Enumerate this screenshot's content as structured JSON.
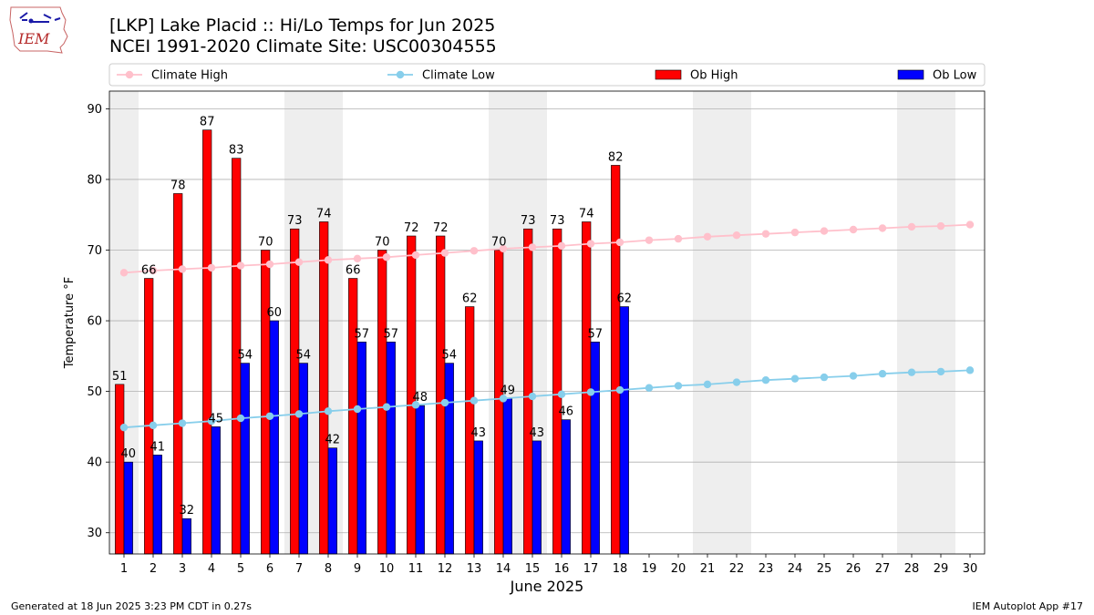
{
  "header": {
    "title_line1": "[LKP] Lake Placid :: Hi/Lo Temps for Jun 2025",
    "title_line2": "NCEI 1991-2020 Climate Site: USC00304555",
    "logo_text": "IEM"
  },
  "footer": {
    "generated": "Generated at 18 Jun 2025 3:23 PM CDT in 0.27s",
    "app": "IEM Autoplot App #17"
  },
  "chart_data": {
    "type": "bar",
    "title": "[LKP] Lake Placid :: Hi/Lo Temps for Jun 2025",
    "subtitle": "NCEI 1991-2020 Climate Site: USC00304555",
    "xlabel": "June 2025",
    "ylabel": "Temperature °F",
    "x_ticks": [
      1,
      2,
      3,
      4,
      5,
      6,
      7,
      8,
      9,
      10,
      11,
      12,
      13,
      14,
      15,
      16,
      17,
      18,
      19,
      20,
      21,
      22,
      23,
      24,
      25,
      26,
      27,
      28,
      29,
      30
    ],
    "y_ticks": [
      30,
      40,
      50,
      60,
      70,
      80,
      90
    ],
    "ylim": [
      27,
      92.5
    ],
    "xlim": [
      0.5,
      30.5
    ],
    "grid": "horizontal",
    "legend_position": "top",
    "weekend_shading_days": [
      1,
      7,
      8,
      14,
      15,
      21,
      22,
      28,
      29
    ],
    "colors": {
      "ob_high": "#ff0000",
      "ob_low": "#0000ff",
      "climate_high": "#ffc0cb",
      "climate_low": "#87ceeb",
      "weekend": "#eeeeee",
      "grid": "#b0b0b0"
    },
    "series": [
      {
        "name": "Climate High",
        "kind": "line",
        "values": [
          66.8,
          67.1,
          67.3,
          67.5,
          67.8,
          68.0,
          68.3,
          68.6,
          68.8,
          69.0,
          69.3,
          69.6,
          69.9,
          70.2,
          70.4,
          70.6,
          70.9,
          71.1,
          71.4,
          71.6,
          71.9,
          72.1,
          72.3,
          72.5,
          72.7,
          72.9,
          73.1,
          73.3,
          73.4,
          73.6
        ]
      },
      {
        "name": "Climate Low",
        "kind": "line",
        "values": [
          44.9,
          45.2,
          45.5,
          45.8,
          46.2,
          46.5,
          46.8,
          47.2,
          47.5,
          47.8,
          48.1,
          48.4,
          48.7,
          49.0,
          49.3,
          49.6,
          49.9,
          50.2,
          50.5,
          50.8,
          51.0,
          51.3,
          51.6,
          51.8,
          52.0,
          52.2,
          52.5,
          52.7,
          52.8,
          53.0
        ]
      },
      {
        "name": "Ob High",
        "kind": "bar",
        "values": [
          51,
          66,
          78,
          87,
          83,
          70,
          73,
          74,
          66,
          70,
          72,
          72,
          62,
          70,
          73,
          73,
          74,
          82
        ]
      },
      {
        "name": "Ob Low",
        "kind": "bar",
        "values": [
          40,
          41,
          32,
          45,
          54,
          60,
          54,
          42,
          57,
          57,
          48,
          54,
          43,
          49,
          43,
          46,
          57,
          62
        ]
      }
    ]
  }
}
